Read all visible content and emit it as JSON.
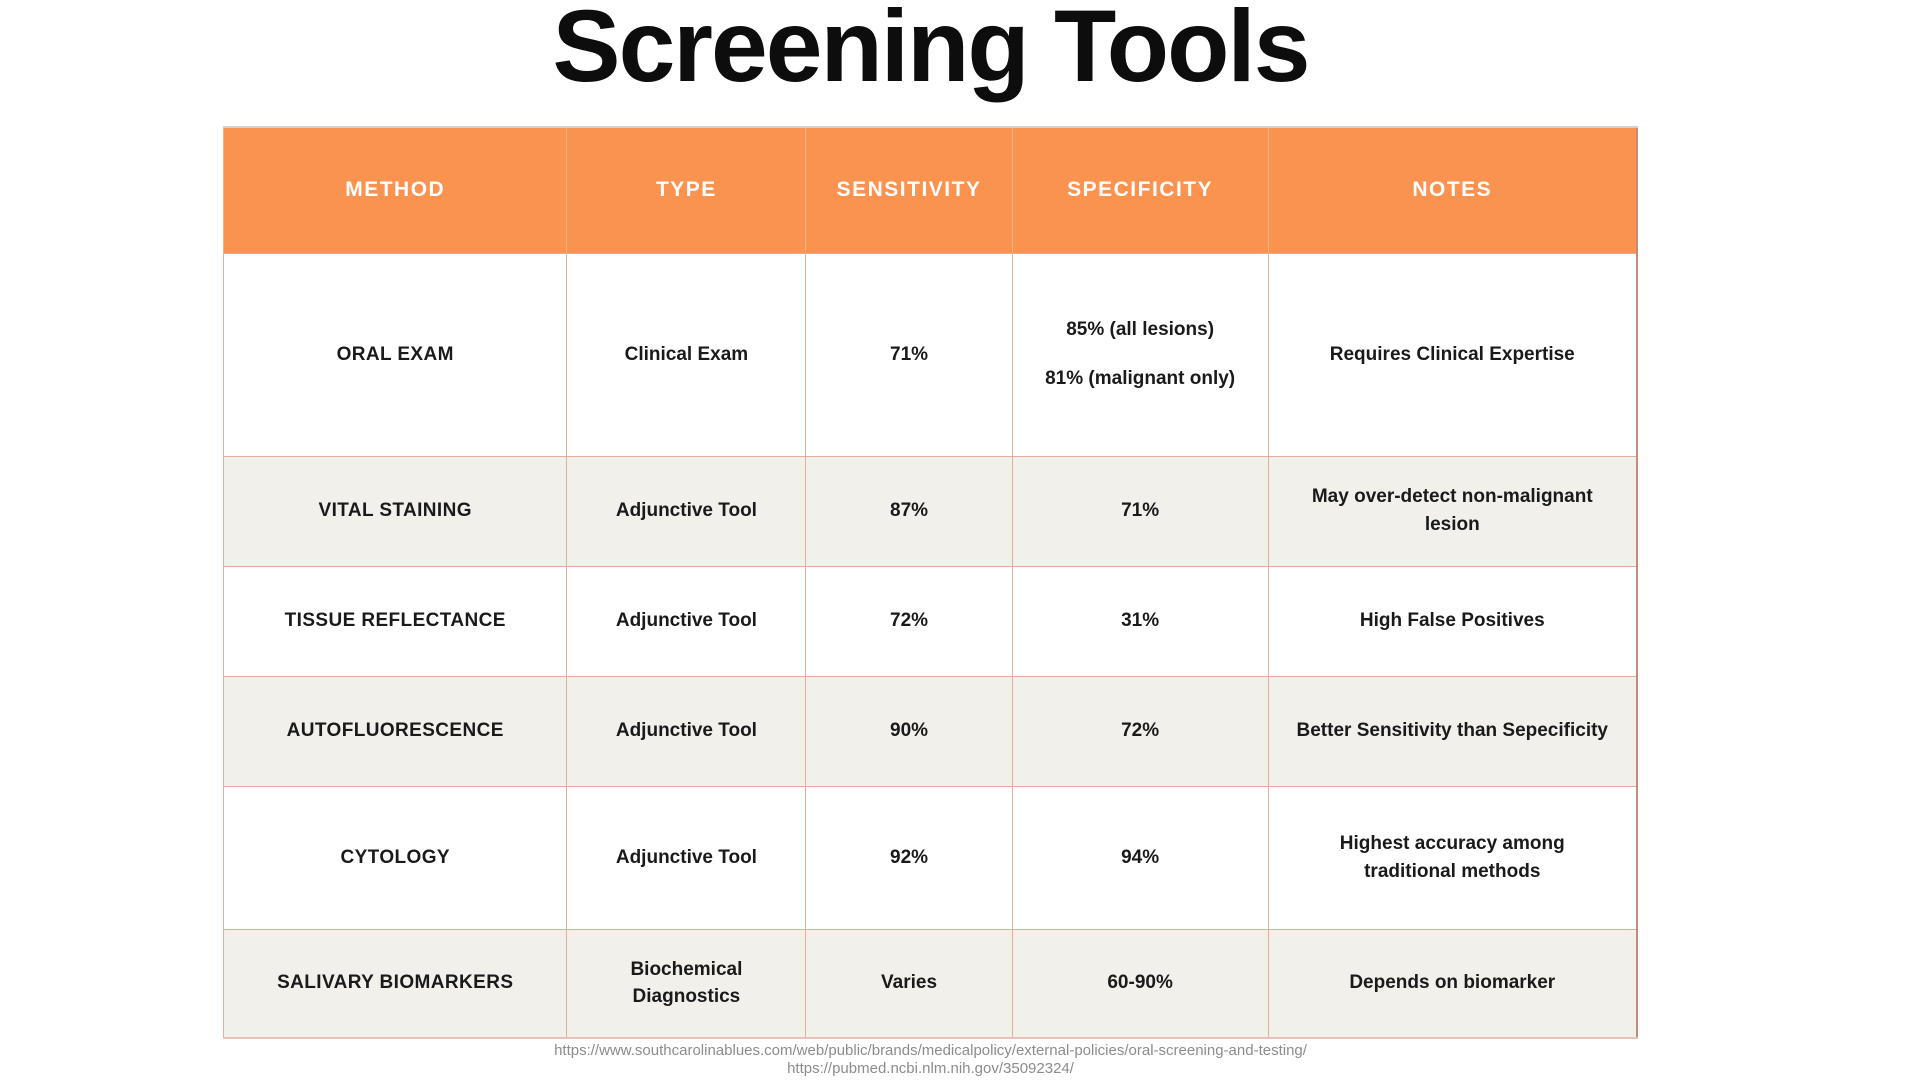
{
  "page": {
    "title": "Screening Tools"
  },
  "colors": {
    "header_bg": "#FA9250",
    "header_text": "#FFFFFF",
    "row_bg": "#FFFFFF",
    "row_alt_bg": "#F2F0EB",
    "cell_text": "#1A1A1A",
    "grid_border": "#E2AE9C",
    "outer_border_right": "#BE8D7B",
    "outer_border_bottom": "#E6C3B6",
    "footer_text": "#8C8C8C"
  },
  "table": {
    "columns": [
      "METHOD",
      "TYPE",
      "SENSITIVITY",
      "SPECIFICITY",
      "NOTES"
    ],
    "rows": [
      {
        "method": "ORAL EXAM",
        "type": "Clinical Exam",
        "sensitivity": "71%",
        "specificity": "85% (all lesions)",
        "specificity2": "81% (malignant only)",
        "notes": "Requires Clinical Expertise"
      },
      {
        "method": "VITAL STAINING",
        "type": "Adjunctive Tool",
        "sensitivity": "87%",
        "specificity": "71%",
        "notes": "May over-detect non-malignant lesion"
      },
      {
        "method": "TISSUE REFLECTANCE",
        "type": "Adjunctive Tool",
        "sensitivity": "72%",
        "specificity": "31%",
        "notes": "High False Positives"
      },
      {
        "method": "AUTOFLUORESCENCE",
        "type": "Adjunctive Tool",
        "sensitivity": "90%",
        "specificity": "72%",
        "notes": "Better Sensitivity than Sepecificity"
      },
      {
        "method": "CYTOLOGY",
        "type": "Adjunctive Tool",
        "sensitivity": "92%",
        "specificity": "94%",
        "notes": "Highest accuracy among traditional methods"
      },
      {
        "method": "SALIVARY BIOMARKERS",
        "type": "Biochemical Diagnostics",
        "sensitivity": "Varies",
        "specificity": "60-90%",
        "notes": "Depends on biomarker"
      }
    ]
  },
  "footer": {
    "source_url_1": "https://www.southcarolinablues.com/web/public/brands/medicalpolicy/external-policies/oral-screening-and-testing/",
    "source_url_2": "https://pubmed.ncbi.nlm.nih.gov/35092324/"
  }
}
